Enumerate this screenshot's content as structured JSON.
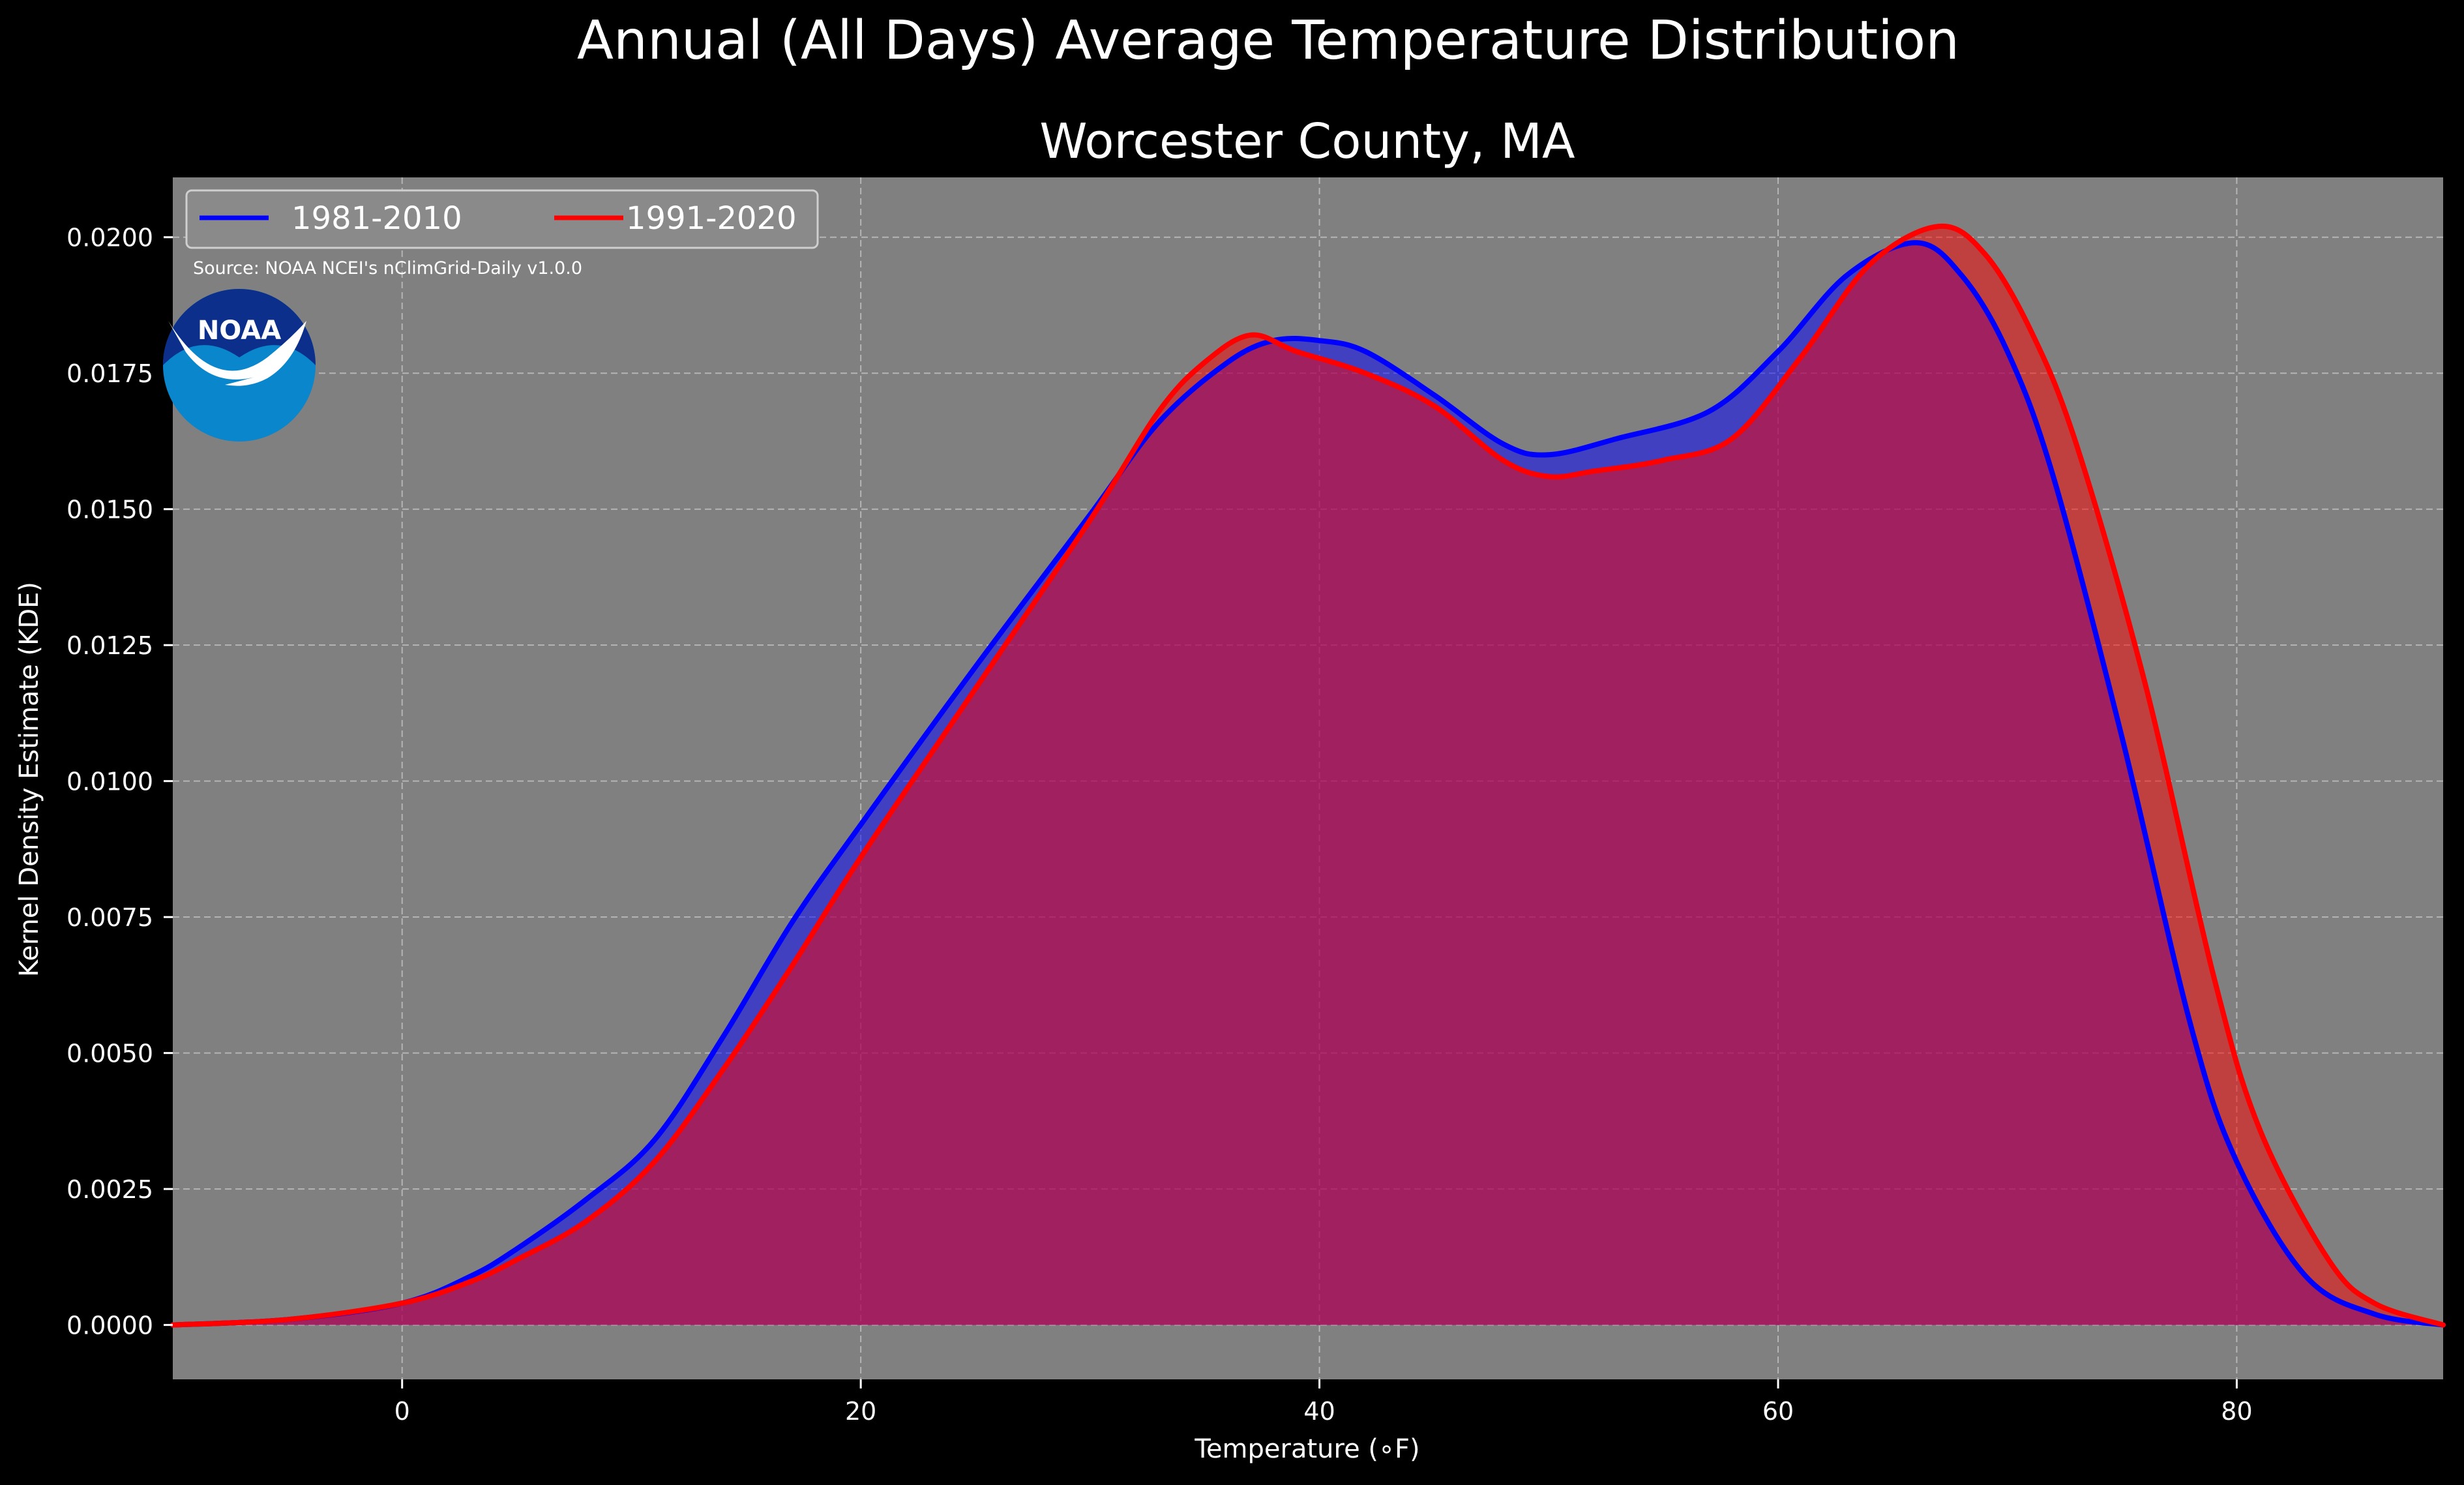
{
  "chart_data": {
    "type": "area",
    "suptitle": "Annual (All Days) Average Temperature Distribution",
    "title": "Worcester County, MA",
    "xlabel": "Temperature (∘F)",
    "ylabel": "Kernel Density Estimate (KDE)",
    "source": "Source: NOAA NCEI's nClimGrid-Daily v1.0.0",
    "logo_text": "NOAA",
    "xlim": [
      -10,
      89
    ],
    "ylim": [
      -0.001,
      0.0211
    ],
    "xticks": [
      0,
      20,
      40,
      60,
      80
    ],
    "xtick_labels": [
      "0",
      "20",
      "40",
      "60",
      "80"
    ],
    "yticks": [
      0,
      0.0025,
      0.005,
      0.0075,
      0.01,
      0.0125,
      0.015,
      0.0175,
      0.02
    ],
    "ytick_labels": [
      "0.0000",
      "0.0025",
      "0.0050",
      "0.0075",
      "0.0100",
      "0.0125",
      "0.0150",
      "0.0175",
      "0.0200"
    ],
    "grid": true,
    "legend_position": "top-left",
    "colors": {
      "background": "#000000",
      "plot_bg": "#808080",
      "series_1981_line": "#0000ff",
      "series_1991_line": "#ff0000"
    },
    "series": [
      {
        "name": "1981-2010",
        "color": "#0000ff",
        "x": [
          -10,
          -5,
          0,
          3,
          5,
          8,
          11,
          14,
          17,
          20,
          25,
          30,
          33,
          36,
          38,
          40,
          42,
          45,
          48,
          50,
          53,
          57,
          60,
          63,
          66,
          68,
          70,
          72,
          75,
          78,
          80,
          83,
          86,
          89
        ],
        "y": [
          0.0,
          0.0001,
          0.0004,
          0.0009,
          0.0014,
          0.0023,
          0.0034,
          0.0053,
          0.0074,
          0.0092,
          0.0121,
          0.0149,
          0.0166,
          0.0177,
          0.0181,
          0.0181,
          0.0179,
          0.0171,
          0.0162,
          0.016,
          0.0163,
          0.0168,
          0.0179,
          0.0193,
          0.0199,
          0.0193,
          0.0179,
          0.0156,
          0.0108,
          0.0055,
          0.003,
          0.0009,
          0.0002,
          0.0
        ]
      },
      {
        "name": "1991-2020",
        "color": "#ff0000",
        "x": [
          -10,
          -5,
          0,
          3,
          5,
          8,
          11,
          14,
          17,
          20,
          25,
          30,
          33,
          35,
          37,
          39,
          42,
          45,
          48,
          50,
          52,
          55,
          58,
          61,
          64,
          67,
          69,
          71,
          73,
          76,
          79,
          81,
          84,
          86,
          89
        ],
        "y": [
          0.0,
          0.0001,
          0.0004,
          0.0008,
          0.0012,
          0.0019,
          0.003,
          0.0047,
          0.0066,
          0.0086,
          0.0117,
          0.0148,
          0.0168,
          0.0177,
          0.0182,
          0.0179,
          0.0175,
          0.0169,
          0.0159,
          0.0156,
          0.0157,
          0.0159,
          0.0163,
          0.0178,
          0.0195,
          0.0202,
          0.0197,
          0.0183,
          0.0162,
          0.0118,
          0.0064,
          0.0036,
          0.0012,
          0.0004,
          0.0
        ]
      }
    ]
  }
}
